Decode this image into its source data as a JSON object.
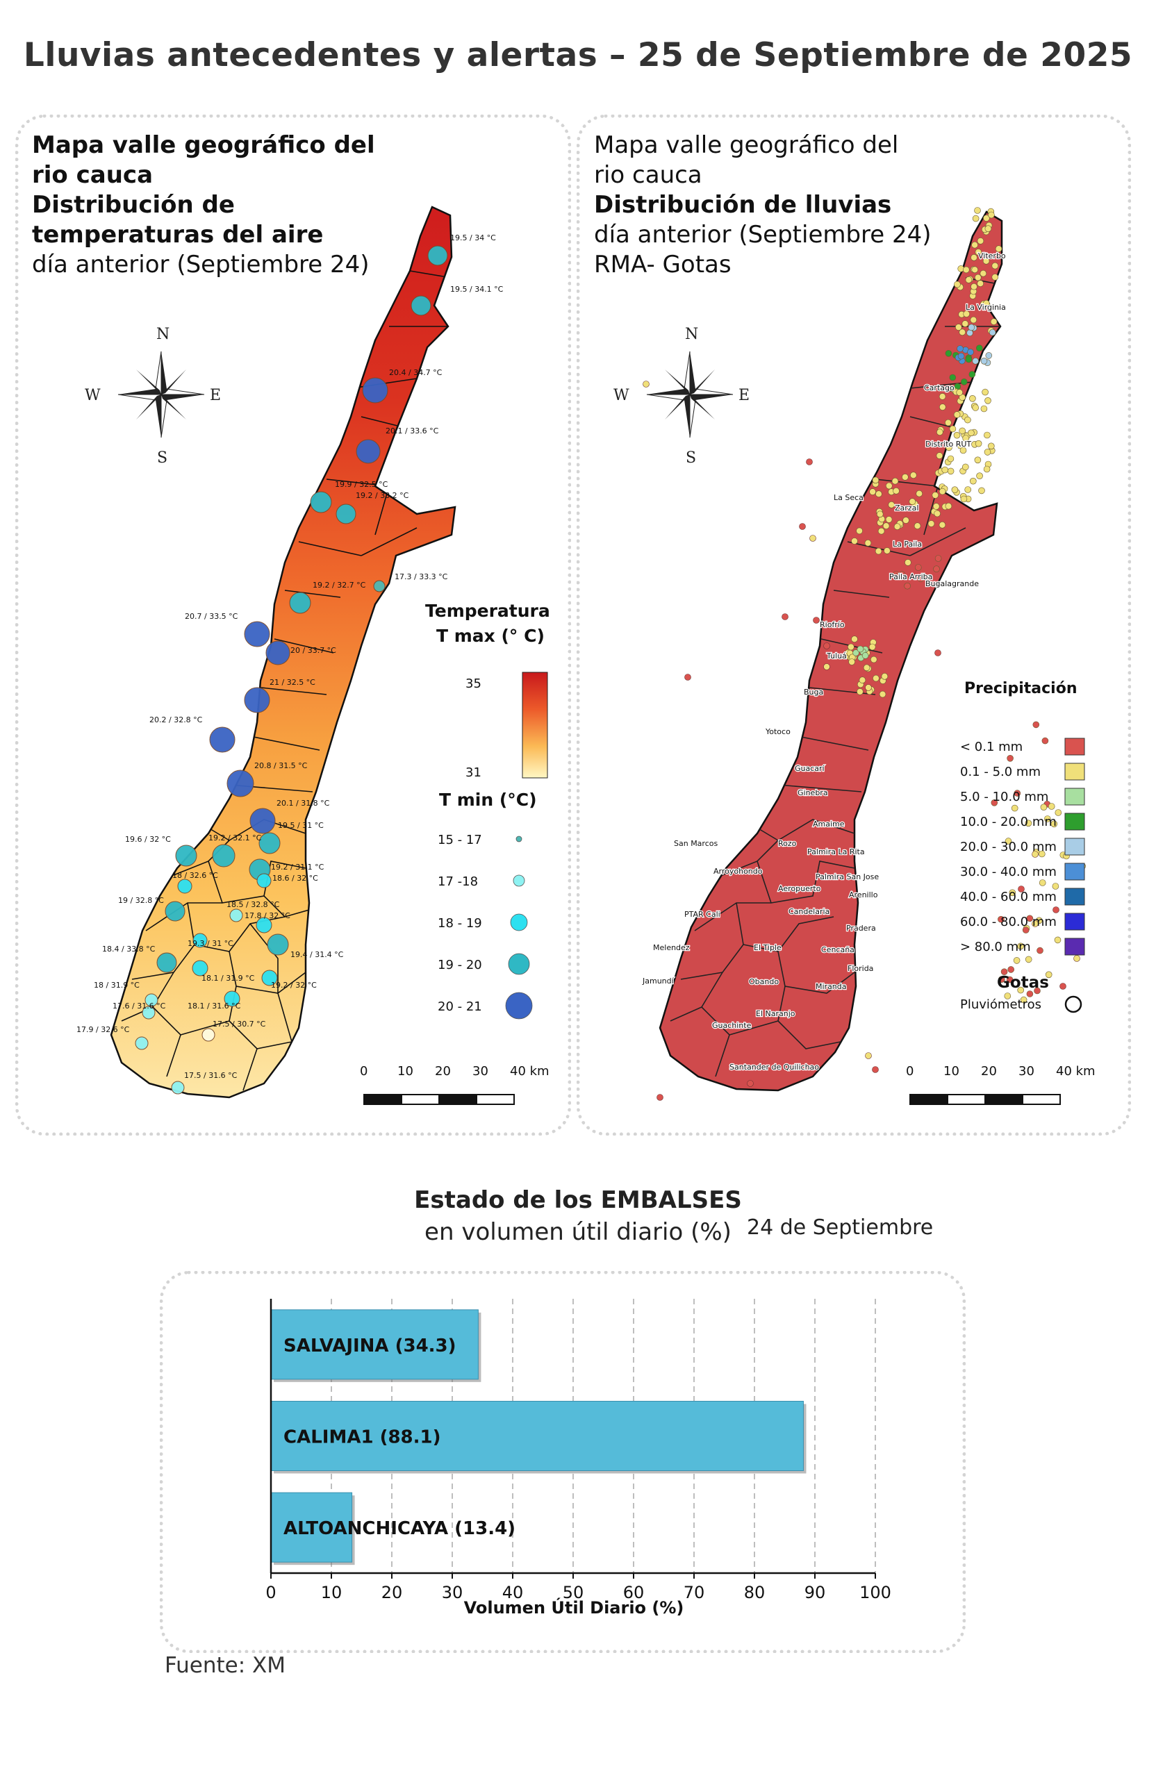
{
  "title": "Lluvias antecedentes y alertas – 25 de Septiembre de 2025",
  "left_panel": {
    "title_lines": [
      "Mapa valle geográfico del",
      "rio cauca"
    ],
    "subtitle_bold_lines": [
      "Distribución de",
      "temperaturas del aire"
    ],
    "date_line": "día anterior (Septiembre 24)",
    "legend_tmax_title_1": "Temperatura",
    "legend_tmax_title_2": "T max (° C)",
    "legend_tmax_high": "35",
    "legend_tmax_low": "31",
    "legend_tmin_title": "T min (°C)",
    "legend_tmin_items": [
      {
        "label": "15 - 17",
        "color": "#4fb8b4"
      },
      {
        "label": "17 -18",
        "color": "#8ef2f2"
      },
      {
        "label": "18 - 19",
        "color": "#2de0f0"
      },
      {
        "label": "19 - 20",
        "color": "#2fb8c4"
      },
      {
        "label": "20 - 21",
        "color": "#3a64c4"
      }
    ],
    "scale_labels": [
      "0",
      "10",
      "20",
      "30",
      "40 km"
    ],
    "compass": {
      "n": "N",
      "s": "S",
      "e": "E",
      "w": "W"
    },
    "station_labels": [
      "19.5 / 34 °C",
      "19.5 / 34.1 °C",
      "20.4 / 34.7 °C",
      "20.1 / 33.6 °C",
      "19.9 / 32.5 °C",
      "19.2 / 33.2 °C",
      "17.3 / 33.3 °C",
      "19.2 / 32.7 °C",
      "20.7 / 33.5 °C",
      "20 / 33.7 °C",
      "21 / 32.5 °C",
      "20.2 / 32.8 °C",
      "20.8 / 31.5 °C",
      "20.1 / 31.8 °C",
      "19.5 / 31 °C",
      "19.6 / 32 °C",
      "19.2 / 32.1 °C",
      "19.2 / 31.1 °C",
      "18.6 / 32 °C",
      "18 / 32.6 °C",
      "19 / 32.8 °C",
      "18.5 / 32.8 °C",
      "17.8 / 32 °C",
      "19.3 / 31 °C",
      "18.4 / 33.8 °C",
      "19.4 / 31.4 °C",
      "18.1 / 31.9 °C",
      "19.2 / 32 °C",
      "18 / 31.9 °C",
      "17.6 / 31.6 °C",
      "18.1 / 31.6 °C",
      "17.5 / 30.7 °C",
      "17.9 / 32.6 °C",
      "17.5 / 31.6 °C"
    ]
  },
  "right_panel": {
    "title_lines": [
      "Mapa valle geográfico del",
      "rio cauca"
    ],
    "subtitle_bold": "Distribución de lluvias",
    "date_line": "día anterior (Septiembre 24)",
    "network_line": "RMA- Gotas",
    "legend_title": "Precipitación",
    "legend_items": [
      {
        "label": "< 0.1 mm",
        "color": "#d9534f"
      },
      {
        "label": "0.1 - 5.0 mm",
        "color": "#f0e07a"
      },
      {
        "label": "5.0 - 10.0 mm",
        "color": "#a8dfa0"
      },
      {
        "label": "10.0 - 20.0 mm",
        "color": "#2e9e2e"
      },
      {
        "label": "20.0 - 30.0 mm",
        "color": "#a9cde6"
      },
      {
        "label": "30.0 - 40.0 mm",
        "color": "#4c8fd6"
      },
      {
        "label": "40.0 - 60.0 mm",
        "color": "#1f6aa8"
      },
      {
        "label": "60.0 - 80.0 mm",
        "color": "#2b2bd6"
      },
      {
        "label": "> 80.0 mm",
        "color": "#5a2bb0"
      }
    ],
    "gotas_title": "Gotas",
    "gotas_item": "Pluviómetros",
    "scale_labels": [
      "0",
      "10",
      "20",
      "30",
      "40 km"
    ],
    "compass": {
      "n": "N",
      "s": "S",
      "e": "E",
      "w": "W"
    },
    "towns": [
      "Viterbo",
      "La Virginia",
      "Cartago",
      "Distrito RUT",
      "La Seca",
      "Zarzal",
      "La Paila",
      "Paila Arriba",
      "Bugalagrande",
      "Riofrío",
      "Tuluá",
      "Buga",
      "Yotoco",
      "Guacarí",
      "Ginebra",
      "Amaime",
      "San Marcos",
      "Rozo",
      "Palmira La Rita",
      "Arroyohondo",
      "Palmira San Jose",
      "Aeropuerto",
      "Arenillo",
      "PTAR Cali",
      "Candelaria",
      "Pradera",
      "Melendez",
      "El Tiple",
      "Cencaña",
      "Florida",
      "Jamundí",
      "Obando",
      "Miranda",
      "El Naranjo",
      "Guachinte",
      "Santander de Quilichao"
    ]
  },
  "reservoirs": {
    "title_bold": "Estado de los EMBALSES",
    "title_normal": "en volumen útil diario (%)",
    "date": "24 de Septiembre",
    "source": "Fuente: XM"
  },
  "chart_data": {
    "type": "bar",
    "orientation": "horizontal",
    "categories": [
      "SALVAJINA",
      "CALIMA1",
      "ALTOANCHICAYA"
    ],
    "bar_labels": [
      "SALVAJINA (34.3)",
      "CALIMA1 (88.1)",
      "ALTOANCHICAYA (13.4)"
    ],
    "values": [
      34.3,
      88.1,
      13.4
    ],
    "xlabel": "Volumen Útil Diario (%)",
    "xlim": [
      0,
      100
    ],
    "xticks": [
      "0",
      "10",
      "20",
      "30",
      "40",
      "50",
      "60",
      "70",
      "80",
      "90",
      "100"
    ],
    "grid": "vertical dashed",
    "bar_color": "#55bbd9"
  }
}
